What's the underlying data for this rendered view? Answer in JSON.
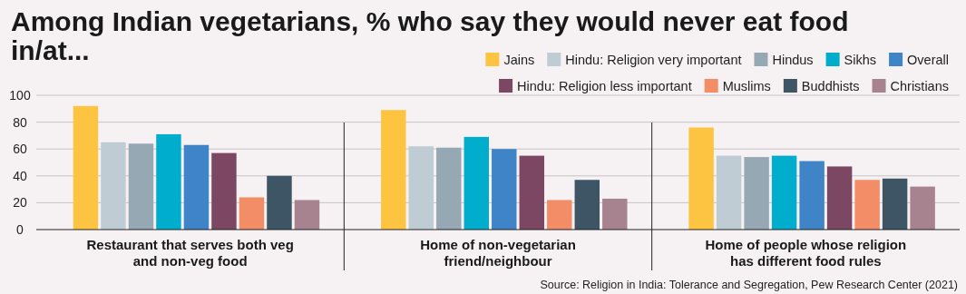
{
  "chart_data": {
    "type": "bar",
    "title": "Among Indian vegetarians, % who say they would never eat food in/at...",
    "categories": [
      "Restaurant that serves both veg and non-veg food",
      "Home of non-vegetarian friend/neighbour",
      "Home of people whose religion has different food rules"
    ],
    "series": [
      {
        "name": "Jains",
        "color": "#fcc440",
        "values": [
          92,
          89,
          76
        ]
      },
      {
        "name": "Hindu: Religion very important",
        "color": "#c0ccd3",
        "values": [
          65,
          62,
          55
        ]
      },
      {
        "name": "Hindus",
        "color": "#95a8b4",
        "values": [
          64,
          61,
          54
        ]
      },
      {
        "name": "Sikhs",
        "color": "#00adcc",
        "values": [
          71,
          69,
          55
        ]
      },
      {
        "name": "Overall",
        "color": "#3f84c6",
        "values": [
          63,
          60,
          51
        ]
      },
      {
        "name": "Hindu: Religion less important",
        "color": "#7c4763",
        "values": [
          57,
          55,
          47
        ]
      },
      {
        "name": "Muslims",
        "color": "#f38d68",
        "values": [
          24,
          22,
          37
        ]
      },
      {
        "name": "Buddhists",
        "color": "#3d5564",
        "values": [
          40,
          37,
          38
        ]
      },
      {
        "name": "Christians",
        "color": "#a7828f",
        "values": [
          22,
          23,
          32
        ]
      }
    ],
    "ylim": [
      0,
      100
    ],
    "yticks": [
      0,
      20,
      40,
      60,
      80,
      100
    ],
    "grid": "y",
    "legend": "top right",
    "annotations": [
      "Source: Religion in India: Tolerance and Segregation, Pew Research Center (2021)"
    ]
  }
}
